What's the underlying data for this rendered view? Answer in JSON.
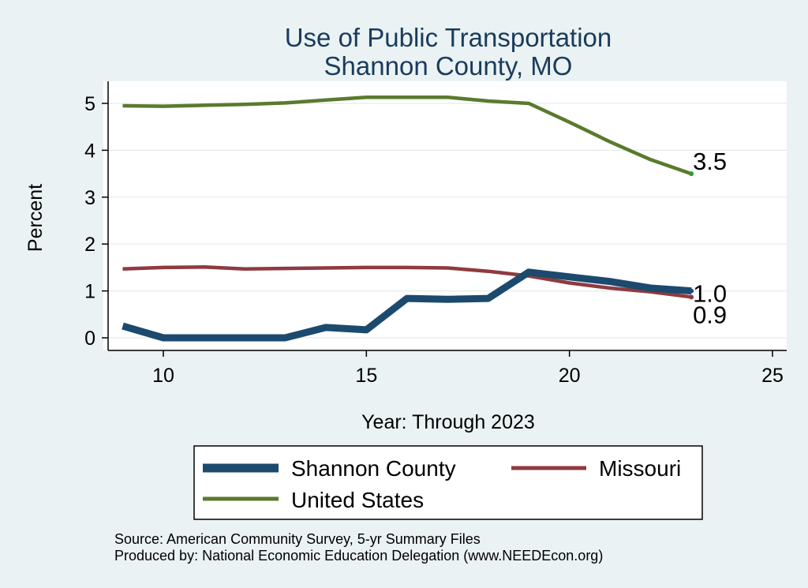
{
  "chart_data": {
    "type": "line",
    "title": "Use of Public Transportation",
    "subtitle": "Shannon County, MO",
    "xlabel": "Year: Through 2023",
    "ylabel": "Percent",
    "xlim": [
      9,
      25
    ],
    "ylim": [
      0,
      5
    ],
    "xticks": [
      10,
      15,
      20,
      25
    ],
    "yticks": [
      0,
      1,
      2,
      3,
      4,
      5
    ],
    "grid": true,
    "legend_position": "bottom",
    "x": [
      9,
      10,
      11,
      12,
      13,
      14,
      15,
      16,
      17,
      18,
      19,
      20,
      21,
      22,
      23
    ],
    "series": [
      {
        "name": "Shannon County",
        "color": "#1b4a6e",
        "values": [
          0.25,
          0.0,
          0.0,
          0.0,
          0.0,
          0.22,
          0.17,
          0.84,
          0.82,
          0.84,
          1.4,
          1.3,
          1.2,
          1.06,
          1.0
        ],
        "end_label": "1.0"
      },
      {
        "name": "Missouri",
        "color": "#8f3a3f",
        "values": [
          1.47,
          1.5,
          1.51,
          1.47,
          1.48,
          1.49,
          1.5,
          1.5,
          1.49,
          1.42,
          1.32,
          1.17,
          1.06,
          0.98,
          0.87
        ],
        "end_label": "0.9"
      },
      {
        "name": "United States",
        "color": "#5a7a2e",
        "values": [
          4.95,
          4.94,
          4.96,
          4.98,
          5.01,
          5.07,
          5.13,
          5.13,
          5.13,
          5.05,
          5.0,
          4.6,
          4.18,
          3.8,
          3.5
        ],
        "end_label": "3.5"
      }
    ]
  },
  "notes": {
    "source": "Source: American Community Survey, 5-yr Summary Files",
    "producer": "Produced by: National Economic Education Delegation (www.NEEDEcon.org)"
  }
}
